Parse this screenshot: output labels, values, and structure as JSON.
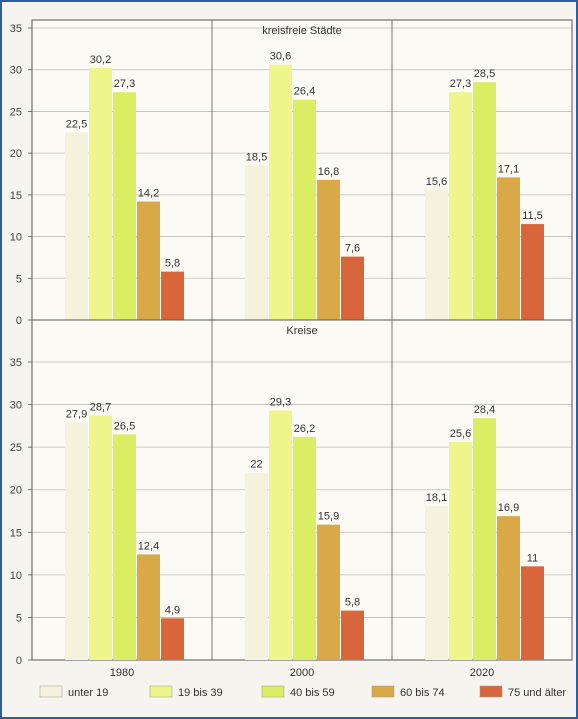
{
  "chart_data": {
    "type": "bar",
    "categories": [
      "1980",
      "2000",
      "2020"
    ],
    "ylim": [
      0,
      35
    ],
    "yticks": [
      0,
      5,
      10,
      15,
      20,
      25,
      30,
      35
    ],
    "grid": true,
    "legend_position": "bottom",
    "series_meta": [
      {
        "name": "unter 19",
        "color": "#f4f1dc"
      },
      {
        "name": "19 bis 39",
        "color": "#eef58a"
      },
      {
        "name": "40 bis 59",
        "color": "#d9ee62"
      },
      {
        "name": "60 bis 74",
        "color": "#d9a948"
      },
      {
        "name": "75 und älter",
        "color": "#d9663a"
      }
    ],
    "panels": [
      {
        "title": "kreisfreie Städte",
        "series": [
          {
            "name": "unter 19",
            "values": [
              22.5,
              18.5,
              15.6
            ],
            "labels": [
              "22,5",
              "18,5",
              "15,6"
            ]
          },
          {
            "name": "19 bis 39",
            "values": [
              30.2,
              30.6,
              27.3
            ],
            "labels": [
              "30,2",
              "30,6",
              "27,3"
            ]
          },
          {
            "name": "40 bis 59",
            "values": [
              27.3,
              26.4,
              28.5
            ],
            "labels": [
              "27,3",
              "26,4",
              "28,5"
            ]
          },
          {
            "name": "60 bis 74",
            "values": [
              14.2,
              16.8,
              17.1
            ],
            "labels": [
              "14,2",
              "16,8",
              "17,1"
            ]
          },
          {
            "name": "75 und älter",
            "values": [
              5.8,
              7.6,
              11.5
            ],
            "labels": [
              "5,8",
              "7,6",
              "11,5"
            ]
          }
        ]
      },
      {
        "title": "Kreise",
        "series": [
          {
            "name": "unter 19",
            "values": [
              27.9,
              22,
              18.1
            ],
            "labels": [
              "27,9",
              "22",
              "18,1"
            ]
          },
          {
            "name": "19 bis 39",
            "values": [
              28.7,
              29.3,
              25.6
            ],
            "labels": [
              "28,7",
              "29,3",
              "25,6"
            ]
          },
          {
            "name": "40 bis 59",
            "values": [
              26.5,
              26.2,
              28.4
            ],
            "labels": [
              "26,5",
              "26,2",
              "28,4"
            ]
          },
          {
            "name": "60 bis 74",
            "values": [
              12.4,
              15.9,
              16.9
            ],
            "labels": [
              "12,4",
              "15,9",
              "16,9"
            ]
          },
          {
            "name": "75 und älter",
            "values": [
              4.9,
              5.8,
              11
            ],
            "labels": [
              "4,9",
              "5,8",
              "11"
            ]
          }
        ]
      }
    ]
  }
}
